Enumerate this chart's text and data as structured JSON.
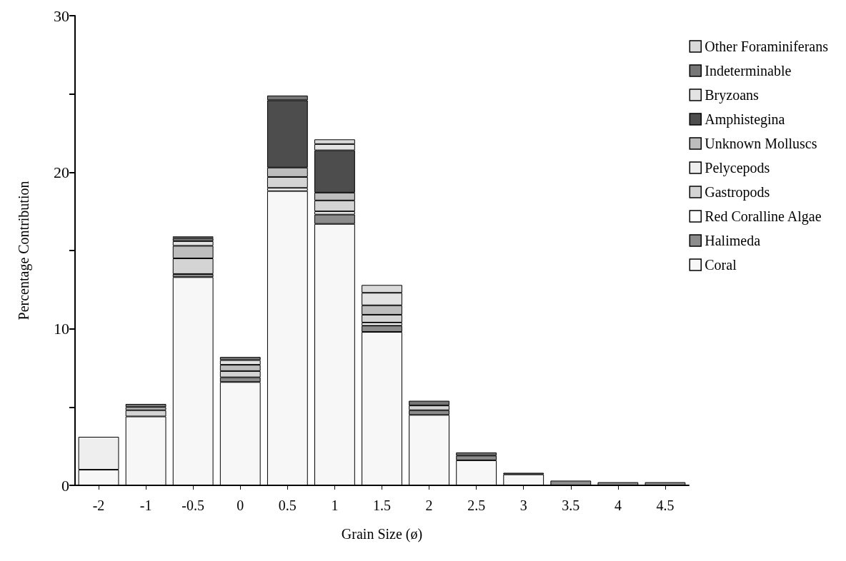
{
  "chart_data": {
    "type": "bar",
    "stacked": true,
    "xlabel": "Grain Size (ø)",
    "ylabel": "Percentage Contribution",
    "categories": [
      "-2",
      "-1",
      "-0.5",
      "0",
      "0.5",
      "1",
      "1.5",
      "2",
      "2.5",
      "3",
      "3.5",
      "4",
      "4.5"
    ],
    "ylim": [
      0,
      30
    ],
    "yticks": [
      0,
      {
        "value": 5,
        "label": null
      },
      10,
      {
        "value": 15,
        "label": null
      },
      20,
      {
        "value": 25,
        "label": null
      },
      30
    ],
    "grid": false,
    "legend": "top right",
    "series": [
      {
        "name": "Coral",
        "color": "#f7f7f7",
        "values": [
          1.0,
          4.4,
          13.3,
          6.6,
          18.8,
          16.7,
          9.8,
          4.5,
          1.6,
          0.7,
          0,
          0,
          0
        ]
      },
      {
        "name": "Halimeda",
        "color": "#8c8c8c",
        "values": [
          0,
          0,
          0.2,
          0.3,
          0,
          0.6,
          0.4,
          0.3,
          0.3,
          0,
          0.3,
          0.2,
          0.2
        ]
      },
      {
        "name": "Red Coralline Algae",
        "color": "#ffffff",
        "values": [
          0,
          0,
          0,
          0,
          0.2,
          0.2,
          0.2,
          0,
          0,
          0,
          0,
          0,
          0
        ]
      },
      {
        "name": "Gastropods",
        "color": "#d4d4d4",
        "values": [
          0,
          0.4,
          1.0,
          0.4,
          0.7,
          0.7,
          0.5,
          0.3,
          0,
          0,
          0,
          0,
          0
        ]
      },
      {
        "name": "Pelycepods",
        "color": "#eeeeee",
        "values": [
          2.1,
          0,
          0,
          0,
          0,
          0,
          0,
          0,
          0,
          0,
          0,
          0,
          0
        ]
      },
      {
        "name": "Unknown Molluscs",
        "color": "#bdbdbd",
        "values": [
          0,
          0.2,
          0.8,
          0.4,
          0.6,
          0.5,
          0.6,
          0,
          0,
          0,
          0,
          0,
          0
        ]
      },
      {
        "name": "Amphistegina",
        "color": "#4d4d4d",
        "values": [
          0,
          0,
          0,
          0,
          4.3,
          2.7,
          0,
          0,
          0,
          0,
          0,
          0,
          0
        ]
      },
      {
        "name": "Bryzoans",
        "color": "#e3e3e3",
        "values": [
          0,
          0,
          0.3,
          0.3,
          0,
          0.4,
          0.8,
          0,
          0,
          0,
          0,
          0,
          0
        ]
      },
      {
        "name": "Indeterminable",
        "color": "#767676",
        "values": [
          0,
          0.2,
          0.2,
          0.2,
          0.3,
          0,
          0,
          0.3,
          0.2,
          0.1,
          0,
          0,
          0
        ]
      },
      {
        "name": "Other Foraminiferans",
        "color": "#dadada",
        "values": [
          0,
          0,
          0.1,
          0,
          0,
          0.3,
          0.5,
          0,
          0,
          0,
          0,
          0,
          0
        ]
      }
    ]
  }
}
